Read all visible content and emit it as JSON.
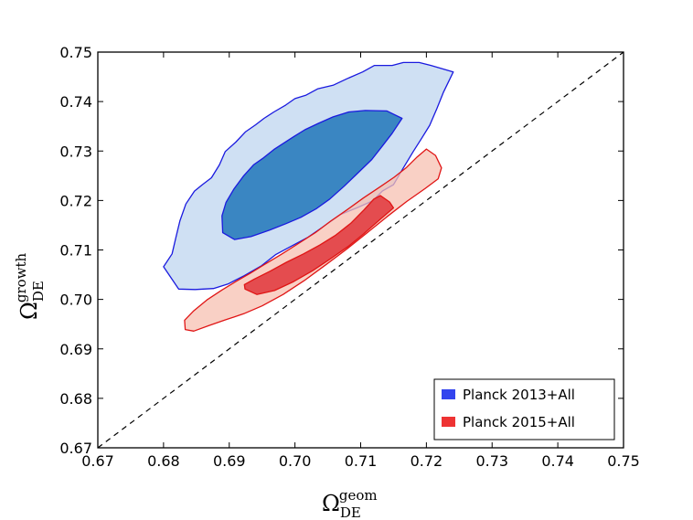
{
  "chart_data": {
    "type": "contour",
    "title": "",
    "xlabel": {
      "symbol": "Ω",
      "subscript": "DE",
      "superscript": "geom"
    },
    "ylabel": {
      "symbol": "Ω",
      "subscript": "DE",
      "superscript": "growth"
    },
    "xlim": [
      0.67,
      0.75
    ],
    "ylim": [
      0.67,
      0.75
    ],
    "xticks": [
      "0.67",
      "0.68",
      "0.69",
      "0.70",
      "0.71",
      "0.72",
      "0.73",
      "0.74",
      "0.75"
    ],
    "yticks": [
      "0.67",
      "0.68",
      "0.69",
      "0.70",
      "0.71",
      "0.72",
      "0.73",
      "0.74",
      "0.75"
    ],
    "reference_line": {
      "style": "dashed",
      "color": "#000000",
      "points": [
        [
          0.67,
          0.67
        ],
        [
          0.75,
          0.75
        ]
      ]
    },
    "legend_position": "lower-right",
    "series": [
      {
        "name": "Planck 2013+All",
        "legend_color": "#3344ee",
        "edge_color": "#1a1adf",
        "outer_fill": "#cfe0f3",
        "inner_fill": "#3a86c2",
        "contours": {
          "outer": [
            [
              0.68,
              0.7066
            ],
            [
              0.6813,
              0.7092
            ],
            [
              0.6819,
              0.7126
            ],
            [
              0.6825,
              0.7159
            ],
            [
              0.6834,
              0.7193
            ],
            [
              0.6847,
              0.7219
            ],
            [
              0.6859,
              0.7232
            ],
            [
              0.6873,
              0.7246
            ],
            [
              0.6885,
              0.7272
            ],
            [
              0.6894,
              0.7299
            ],
            [
              0.691,
              0.7318
            ],
            [
              0.6925,
              0.7339
            ],
            [
              0.694,
              0.7353
            ],
            [
              0.6953,
              0.7366
            ],
            [
              0.6968,
              0.7379
            ],
            [
              0.6986,
              0.7393
            ],
            [
              0.7,
              0.7406
            ],
            [
              0.7017,
              0.7413
            ],
            [
              0.7035,
              0.7426
            ],
            [
              0.7058,
              0.7433
            ],
            [
              0.7079,
              0.7446
            ],
            [
              0.7103,
              0.746
            ],
            [
              0.7121,
              0.7473
            ],
            [
              0.7148,
              0.7473
            ],
            [
              0.7165,
              0.7479
            ],
            [
              0.7189,
              0.7479
            ],
            [
              0.7207,
              0.7473
            ],
            [
              0.7241,
              0.746
            ],
            [
              0.7226,
              0.7419
            ],
            [
              0.7216,
              0.7386
            ],
            [
              0.7205,
              0.7352
            ],
            [
              0.7193,
              0.7326
            ],
            [
              0.718,
              0.7299
            ],
            [
              0.7165,
              0.7266
            ],
            [
              0.715,
              0.7232
            ],
            [
              0.7133,
              0.7219
            ],
            [
              0.7118,
              0.7199
            ],
            [
              0.7094,
              0.7185
            ],
            [
              0.707,
              0.7172
            ],
            [
              0.7042,
              0.7146
            ],
            [
              0.7019,
              0.7125
            ],
            [
              0.6995,
              0.7108
            ],
            [
              0.6971,
              0.7091
            ],
            [
              0.6949,
              0.7068
            ],
            [
              0.6923,
              0.7048
            ],
            [
              0.6898,
              0.7031
            ],
            [
              0.6876,
              0.7022
            ],
            [
              0.6848,
              0.702
            ],
            [
              0.6823,
              0.7021
            ]
          ],
          "inner": [
            [
              0.689,
              0.7135
            ],
            [
              0.6889,
              0.7169
            ],
            [
              0.6895,
              0.7196
            ],
            [
              0.6907,
              0.7223
            ],
            [
              0.6922,
              0.725
            ],
            [
              0.6937,
              0.7272
            ],
            [
              0.6952,
              0.7286
            ],
            [
              0.6968,
              0.7303
            ],
            [
              0.6983,
              0.7316
            ],
            [
              0.6998,
              0.7329
            ],
            [
              0.7015,
              0.7343
            ],
            [
              0.7036,
              0.7356
            ],
            [
              0.7058,
              0.7369
            ],
            [
              0.7082,
              0.7379
            ],
            [
              0.7107,
              0.7382
            ],
            [
              0.714,
              0.7381
            ],
            [
              0.7163,
              0.7366
            ],
            [
              0.7148,
              0.7336
            ],
            [
              0.7133,
              0.731
            ],
            [
              0.7117,
              0.7283
            ],
            [
              0.7096,
              0.7256
            ],
            [
              0.7075,
              0.7229
            ],
            [
              0.7053,
              0.7203
            ],
            [
              0.7032,
              0.7183
            ],
            [
              0.7009,
              0.7166
            ],
            [
              0.6986,
              0.7153
            ],
            [
              0.6961,
              0.714
            ],
            [
              0.6933,
              0.7127
            ],
            [
              0.6908,
              0.7121
            ]
          ]
        }
      },
      {
        "name": "Planck 2015+All",
        "legend_color": "#ee3333",
        "edge_color": "#e01515",
        "outer_fill": "#f7c0b2",
        "inner_fill": "#e0353a",
        "contours": {
          "outer": [
            [
              0.6833,
              0.6939
            ],
            [
              0.6832,
              0.6958
            ],
            [
              0.6846,
              0.6977
            ],
            [
              0.6866,
              0.6999
            ],
            [
              0.6889,
              0.7019
            ],
            [
              0.691,
              0.7036
            ],
            [
              0.6932,
              0.7053
            ],
            [
              0.6954,
              0.7071
            ],
            [
              0.6979,
              0.7091
            ],
            [
              0.7003,
              0.7111
            ],
            [
              0.7031,
              0.7135
            ],
            [
              0.7054,
              0.7158
            ],
            [
              0.7078,
              0.718
            ],
            [
              0.7104,
              0.7205
            ],
            [
              0.713,
              0.7228
            ],
            [
              0.7151,
              0.7247
            ],
            [
              0.717,
              0.7267
            ],
            [
              0.7186,
              0.7288
            ],
            [
              0.72,
              0.7304
            ],
            [
              0.7214,
              0.7291
            ],
            [
              0.7223,
              0.7266
            ],
            [
              0.7218,
              0.7244
            ],
            [
              0.7198,
              0.7224
            ],
            [
              0.717,
              0.7198
            ],
            [
              0.714,
              0.7167
            ],
            [
              0.711,
              0.7135
            ],
            [
              0.7078,
              0.7101
            ],
            [
              0.7048,
              0.7071
            ],
            [
              0.7014,
              0.7038
            ],
            [
              0.6982,
              0.701
            ],
            [
              0.695,
              0.6987
            ],
            [
              0.6922,
              0.6971
            ],
            [
              0.6895,
              0.6959
            ],
            [
              0.6869,
              0.6947
            ],
            [
              0.6846,
              0.6936
            ]
          ],
          "inner": [
            [
              0.6924,
              0.7021
            ],
            [
              0.6923,
              0.703
            ],
            [
              0.6938,
              0.7041
            ],
            [
              0.6962,
              0.7057
            ],
            [
              0.6987,
              0.7075
            ],
            [
              0.7013,
              0.7092
            ],
            [
              0.7038,
              0.711
            ],
            [
              0.7062,
              0.713
            ],
            [
              0.7085,
              0.7154
            ],
            [
              0.7105,
              0.7181
            ],
            [
              0.712,
              0.7203
            ],
            [
              0.713,
              0.721
            ],
            [
              0.7144,
              0.7197
            ],
            [
              0.715,
              0.7185
            ],
            [
              0.7129,
              0.7161
            ],
            [
              0.7105,
              0.7133
            ],
            [
              0.7081,
              0.7107
            ],
            [
              0.7055,
              0.7083
            ],
            [
              0.7027,
              0.7058
            ],
            [
              0.6998,
              0.7036
            ],
            [
              0.6969,
              0.7018
            ],
            [
              0.6942,
              0.701
            ]
          ]
        }
      }
    ]
  }
}
